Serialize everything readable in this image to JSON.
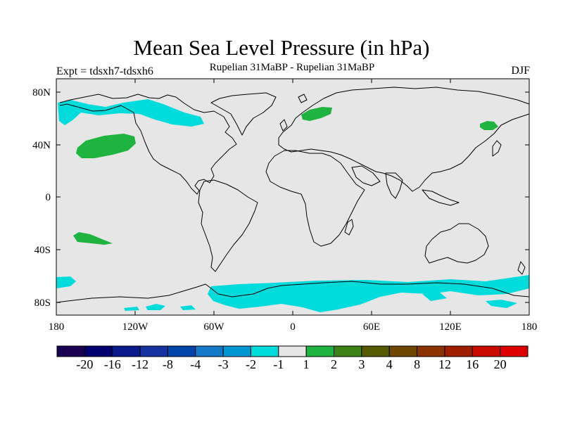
{
  "title": "Mean Sea Level Pressure (in hPa)",
  "subtitle": "Rupelian  31MaBP - Rupelian  31MaBP",
  "experiment": "Expt = tdsxh7-tdsxh6",
  "season": "DJF",
  "colors": {
    "land_background": "#e6e6e6",
    "coastline": "#000000",
    "negative_anomaly": "#00dcdc",
    "positive_anomaly": "#1fb33f"
  },
  "axes": {
    "y_ticks": [
      "80N",
      "40N",
      "0",
      "40S",
      "80S"
    ],
    "x_ticks": [
      "180",
      "120W",
      "60W",
      "0",
      "60E",
      "120E",
      "180"
    ]
  },
  "colorbar": {
    "colors": [
      "#1a0050",
      "#00006e",
      "#0a1a8c",
      "#1432a0",
      "#0046aa",
      "#1478c8",
      "#0096d2",
      "#00dcdc",
      "#e6e6e6",
      "#1fb33f",
      "#3c8214",
      "#555a00",
      "#6e4600",
      "#8c3200",
      "#a01e00",
      "#c80a00",
      "#dc0000"
    ],
    "labels": [
      "-20",
      "-16",
      "-12",
      "-8",
      "-4",
      "-3",
      "-2",
      "-1",
      "1",
      "2",
      "3",
      "4",
      "8",
      "12",
      "16",
      "20"
    ]
  },
  "chart_data": {
    "type": "map",
    "title": "Mean Sea Level Pressure (in hPa)",
    "projection": "cylindrical equidistant",
    "lon_range": [
      -180,
      180
    ],
    "lat_range": [
      -90,
      90
    ],
    "regions": [
      {
        "name": "North Pacific / Bering cyan band",
        "sign": "negative",
        "class": "-2 to -1"
      },
      {
        "name": "Arctic Canada cyan band",
        "sign": "negative",
        "class": "-2 to -1"
      },
      {
        "name": "Southern Ocean cyan belt",
        "sign": "negative",
        "class": "-2 to -1"
      },
      {
        "name": "North Pacific green patch",
        "sign": "positive",
        "class": "1 to 2"
      },
      {
        "name": "Scandinavia/Barents green patch",
        "sign": "positive",
        "class": "1 to 2"
      },
      {
        "name": "NE Siberia green patch",
        "sign": "positive",
        "class": "1 to 2"
      },
      {
        "name": "South Pacific green patch",
        "sign": "positive",
        "class": "1 to 2"
      }
    ]
  }
}
